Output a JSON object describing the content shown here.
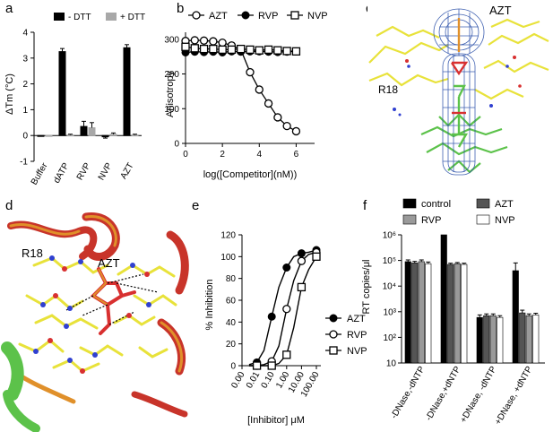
{
  "panels": {
    "a": {
      "letter": "a",
      "ylabel": "ΔTm (°C)"
    },
    "b": {
      "letter": "b",
      "ylabel": "Anisotropy",
      "xlabel": "log([Competitor](nM))"
    },
    "c": {
      "letter": "c",
      "label_azt": "AZT",
      "label_r18": "R18"
    },
    "d": {
      "letter": "d",
      "label_azt": "AZT",
      "label_r18": "R18"
    },
    "e": {
      "letter": "e",
      "ylabel": "% Inhibition",
      "xlabel": "[Inhibitor] μM"
    },
    "f": {
      "letter": "f",
      "ylabel": "RT copies/μl"
    }
  },
  "colors": {
    "black": "#000000",
    "grey": "#a8a8a8",
    "darkgrey": "#555555",
    "midgrey": "#9a9a9a",
    "white": "#ffffff",
    "mesh": "#2a4fa8",
    "carbon_yellow": "#e8e23a",
    "carbon_green": "#5cc24a",
    "protein_red": "#c8342a",
    "protein_orange": "#e0902a",
    "oxygen": "#d83030",
    "nitrogen": "#3040d0"
  },
  "chart_data": [
    {
      "panel": "a",
      "type": "bar",
      "categories": [
        "Buffer",
        "dATP",
        "RVP",
        "NVP",
        "AZT"
      ],
      "series": [
        {
          "name": "- DTT",
          "values": [
            0,
            3.25,
            0.35,
            -0.05,
            3.4
          ],
          "errors": [
            0,
            0.12,
            0.2,
            0.05,
            0.12
          ],
          "color": "#000000"
        },
        {
          "name": "+ DTT",
          "values": [
            0,
            0.02,
            0.3,
            0.05,
            0.02
          ],
          "errors": [
            0,
            0.03,
            0.2,
            0.05,
            0.03
          ],
          "color": "#a8a8a8"
        }
      ],
      "ylabel": "ΔTm (°C)",
      "ylim": [
        -1,
        4
      ],
      "yticks": [
        "-1",
        "0",
        "1",
        "2",
        "3",
        "4"
      ],
      "legend_placement": "top-right"
    },
    {
      "panel": "b",
      "type": "line",
      "series": [
        {
          "name": "AZT",
          "marker": "open-circle",
          "x": [
            0,
            0.5,
            1,
            1.5,
            2,
            2.5,
            3,
            3.5,
            4,
            4.5,
            5,
            5.5,
            6
          ],
          "y": [
            295,
            297,
            296,
            294,
            290,
            282,
            270,
            205,
            155,
            115,
            75,
            50,
            35
          ]
        },
        {
          "name": "RVP",
          "marker": "filled-circle",
          "x": [
            0,
            0.5,
            1,
            1.5,
            2,
            2.5,
            3,
            3.5,
            4,
            4.5,
            5,
            5.5,
            6
          ],
          "y": [
            262,
            264,
            263,
            264,
            262,
            265,
            264,
            265,
            265,
            264,
            263,
            264,
            265
          ]
        },
        {
          "name": "NVP",
          "marker": "open-square",
          "x": [
            0,
            0.5,
            1,
            1.5,
            2,
            2.5,
            3,
            3.5,
            4,
            4.5,
            5,
            5.5,
            6
          ],
          "y": [
            278,
            274,
            272,
            272,
            270,
            270,
            272,
            270,
            268,
            270,
            268,
            266,
            265
          ]
        }
      ],
      "xlabel": "log([Competitor](nM))",
      "ylabel": "Anisotropy",
      "xlim": [
        0,
        7
      ],
      "ylim": [
        0,
        320
      ],
      "xticks": [
        "0",
        "2",
        "4",
        "6"
      ],
      "yticks": [
        "0",
        "100",
        "200",
        "300"
      ],
      "legend_placement": "top"
    },
    {
      "panel": "e",
      "type": "line",
      "categories": [
        "0.00",
        "0.01",
        "0.10",
        "1.00",
        "10.00",
        "100.00"
      ],
      "series": [
        {
          "name": "AZT",
          "marker": "filled-circle",
          "x": [
            0.003,
            0.01,
            0.03,
            0.1,
            0.3,
            1,
            3,
            10,
            30,
            100
          ],
          "y": [
            1,
            3,
            14,
            45,
            72,
            90,
            100,
            103,
            104,
            106
          ]
        },
        {
          "name": "RVP",
          "marker": "open-circle",
          "x": [
            0.003,
            0.01,
            0.03,
            0.1,
            0.3,
            1,
            3,
            10,
            30,
            100
          ],
          "y": [
            0,
            0,
            1,
            4,
            18,
            52,
            78,
            96,
            102,
            104
          ]
        },
        {
          "name": "NVP",
          "marker": "open-square",
          "x": [
            0.003,
            0.01,
            0.03,
            0.1,
            0.3,
            1,
            3,
            10,
            30,
            100
          ],
          "y": [
            0,
            0,
            0,
            0,
            2,
            10,
            35,
            72,
            88,
            100
          ]
        }
      ],
      "xlabel": "[Inhibitor] μM",
      "ylabel": "% Inhibition",
      "ylim": [
        0,
        120
      ],
      "yticks": [
        "0",
        "20",
        "40",
        "60",
        "80",
        "100",
        "120"
      ],
      "legend_placement": "bottom-right"
    },
    {
      "panel": "f",
      "type": "bar",
      "categories": [
        "-DNase,-dNTP",
        "-DNase,+dNTP",
        "+DNase, -dNTP",
        "+DNase, +dNTP"
      ],
      "series": [
        {
          "name": "control",
          "values": [
            90000,
            1000000,
            600,
            40000
          ],
          "errors": [
            15000,
            0,
            150,
            40000
          ],
          "color": "#000000"
        },
        {
          "name": "AZT",
          "values": [
            80000,
            70000,
            700,
            900
          ],
          "errors": [
            12000,
            8000,
            120,
            250
          ],
          "color": "#555555"
        },
        {
          "name": "RVP",
          "values": [
            90000,
            75000,
            700,
            700
          ],
          "errors": [
            15000,
            8000,
            120,
            120
          ],
          "color": "#9a9a9a"
        },
        {
          "name": "NVP",
          "values": [
            75000,
            70000,
            600,
            750
          ],
          "errors": [
            12000,
            8000,
            100,
            120
          ],
          "color": "#ffffff"
        }
      ],
      "ylabel": "RT copies/μl",
      "yscale": "log",
      "ylim": [
        10,
        1000000
      ],
      "yticks": [
        "10",
        "10²",
        "10³",
        "10⁴",
        "10⁵",
        "10⁶"
      ],
      "legend_placement": "top"
    }
  ]
}
